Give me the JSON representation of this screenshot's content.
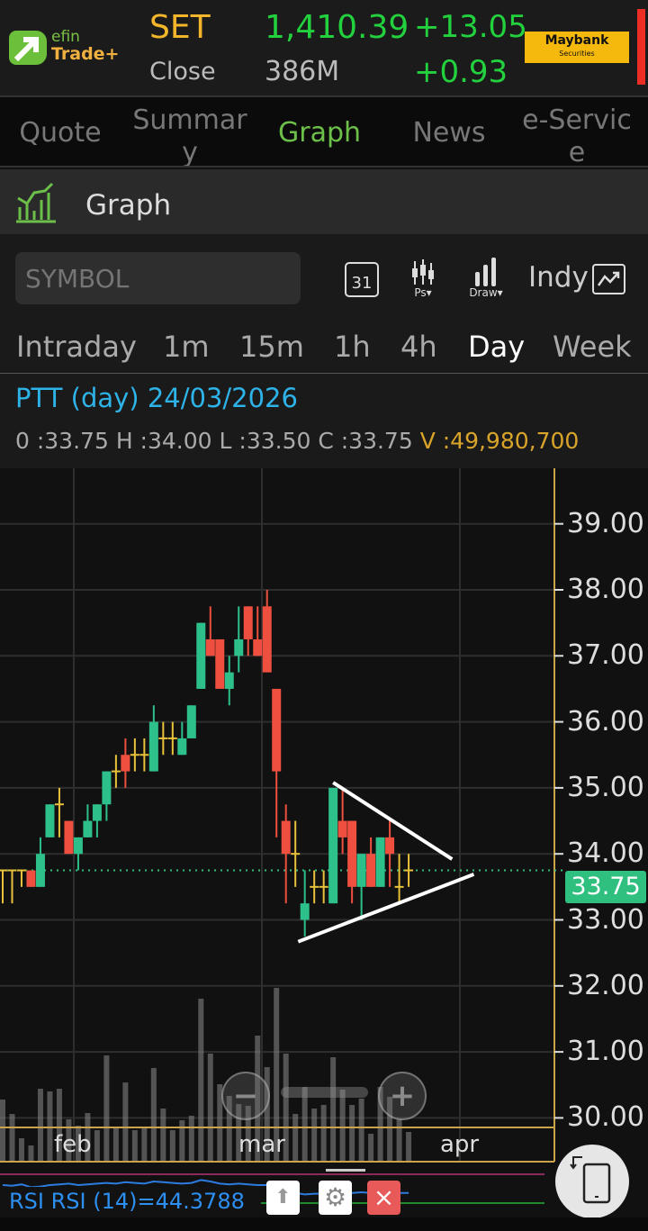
{
  "header": {
    "logo_text_1": "efin",
    "logo_text_2": "Trade+",
    "index_name": "SET",
    "market_status": "Close",
    "index_value": "1,410.39",
    "volume": "386M",
    "change": "+13.05",
    "change_pct": "+0.93",
    "broker_logo": "Maybank",
    "broker_sub": "Securities"
  },
  "tabs": [
    {
      "label": "Quote"
    },
    {
      "label": "Summary"
    },
    {
      "label": "Graph",
      "active": true
    },
    {
      "label": "News"
    },
    {
      "label": "e-Service"
    }
  ],
  "section_title": "Graph",
  "toolbar": {
    "symbol_placeholder": "SYMBOL",
    "calendar_day": "31",
    "ps_label": "Ps▾",
    "draw_label": "Draw▾",
    "indy_label": "Indy"
  },
  "timeframes": [
    {
      "label": "Intraday"
    },
    {
      "label": "1m"
    },
    {
      "label": "15m"
    },
    {
      "label": "1h"
    },
    {
      "label": "4h"
    },
    {
      "label": "Day",
      "active": true
    },
    {
      "label": "Week"
    }
  ],
  "info": {
    "title": "PTT (day) 24/03/2026",
    "o": "0 :33.75",
    "h": "H :34.00",
    "l": "L :33.50",
    "c": "C :33.75",
    "v": "V :49,980,700"
  },
  "colors": {
    "up": "#2ec08a",
    "down": "#ee4f3e",
    "doji": "#e8c23a",
    "accent": "#6cc04a",
    "axis": "#c9a44a"
  },
  "chart_data": {
    "type": "candlestick",
    "y_ticks": [
      "39.00",
      "38.00",
      "37.00",
      "36.00",
      "35.00",
      "34.00",
      "33.00",
      "32.00",
      "31.00",
      "30.00"
    ],
    "ylim": [
      30,
      39
    ],
    "x_ticks": [
      "feb",
      "mar",
      "apr"
    ],
    "last_price": "33.75",
    "candles": [
      [
        33.75,
        33.75,
        33.25,
        33.75
      ],
      [
        33.75,
        33.75,
        33.25,
        33.75
      ],
      [
        33.75,
        33.75,
        33.5,
        33.75
      ],
      [
        33.75,
        33.75,
        33.5,
        33.5
      ],
      [
        33.5,
        34.25,
        33.5,
        34.0
      ],
      [
        34.25,
        34.75,
        34.25,
        34.75
      ],
      [
        34.75,
        35.0,
        34.25,
        34.75
      ],
      [
        34.5,
        34.5,
        34.0,
        34.0
      ],
      [
        34.0,
        34.25,
        33.75,
        34.25
      ],
      [
        34.25,
        34.75,
        34.25,
        34.5
      ],
      [
        34.5,
        34.75,
        34.25,
        34.75
      ],
      [
        34.75,
        35.25,
        34.5,
        35.25
      ],
      [
        35.25,
        35.5,
        35.0,
        35.25
      ],
      [
        35.5,
        35.75,
        35.0,
        35.25
      ],
      [
        35.5,
        35.75,
        35.25,
        35.5
      ],
      [
        35.5,
        35.75,
        35.25,
        35.5
      ],
      [
        35.25,
        36.25,
        35.25,
        36.0
      ],
      [
        35.75,
        36.0,
        35.5,
        35.75
      ],
      [
        35.75,
        36.0,
        35.5,
        35.75
      ],
      [
        35.5,
        36.0,
        35.5,
        35.75
      ],
      [
        35.75,
        36.25,
        35.75,
        36.25
      ],
      [
        36.5,
        37.5,
        36.5,
        37.5
      ],
      [
        37.25,
        37.75,
        37.0,
        37.0
      ],
      [
        37.25,
        37.25,
        36.5,
        36.5
      ],
      [
        36.5,
        37.0,
        36.25,
        36.75
      ],
      [
        37.0,
        37.75,
        36.75,
        37.25
      ],
      [
        37.75,
        37.75,
        37.0,
        37.25
      ],
      [
        37.25,
        37.75,
        37.0,
        37.0
      ],
      [
        37.75,
        38.0,
        36.75,
        36.75
      ],
      [
        36.5,
        36.5,
        34.25,
        35.25
      ],
      [
        34.5,
        34.75,
        33.25,
        34.0
      ],
      [
        34.0,
        34.5,
        33.5,
        34.0
      ],
      [
        33.0,
        33.75,
        32.75,
        33.25
      ],
      [
        33.5,
        33.75,
        33.25,
        33.5
      ],
      [
        33.5,
        33.75,
        33.25,
        33.5
      ],
      [
        33.25,
        35.0,
        33.25,
        35.0
      ],
      [
        34.5,
        35.0,
        34.0,
        34.25
      ],
      [
        34.5,
        34.5,
        33.25,
        33.5
      ],
      [
        33.5,
        34.0,
        33.0,
        34.0
      ],
      [
        34.0,
        34.25,
        33.5,
        33.5
      ],
      [
        33.5,
        34.25,
        33.5,
        34.25
      ],
      [
        34.25,
        34.5,
        33.5,
        34.0
      ],
      [
        33.5,
        34.0,
        33.25,
        33.5
      ],
      [
        33.75,
        34.0,
        33.5,
        33.75
      ]
    ],
    "volume_m": [
      104.5,
      80.3,
      39.4,
      27.3,
      122.7,
      118.2,
      122.7,
      71.2,
      60.6,
      81.8,
      53.0,
      178.8,
      59.1,
      133.3,
      53.0,
      59.1,
      157.6,
      89.4,
      53.0,
      69.7,
      77.3,
      274.2,
      181.8,
      130.3,
      110.6,
      97.0,
      93.9,
      212.1,
      159.1,
      292.4,
      181.8,
      80.3,
      125.7,
      89.4,
      95.4,
      175.7,
      121.2,
      95.4,
      106.1,
      47.0,
      125.7,
      109.1,
      71.2,
      50.0
    ],
    "trendlines": [
      {
        "from": [
          35,
          35.08
        ],
        "to": [
          47.6,
          33.92
        ]
      },
      {
        "from": [
          31.3,
          32.67
        ],
        "to": [
          49.9,
          33.69
        ]
      }
    ]
  },
  "rsi": {
    "label": "RSI RSI (14)=44.3788",
    "value": 44.3788,
    "overbought": 70,
    "oversold": 30,
    "values": [
      55,
      54,
      56,
      52,
      53,
      55,
      56,
      57,
      55,
      56,
      57,
      58,
      57,
      59,
      58,
      57,
      60,
      59,
      58,
      57,
      58,
      62,
      60,
      57,
      56,
      57,
      56,
      55,
      55,
      48,
      45,
      44,
      42,
      43,
      43,
      50,
      47,
      44,
      45,
      44,
      46,
      45,
      44,
      44
    ]
  },
  "buttons": {
    "remove": "×"
  }
}
